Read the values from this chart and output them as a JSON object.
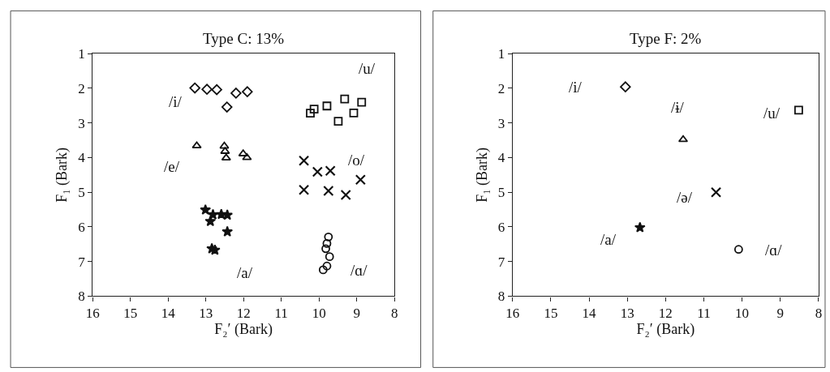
{
  "chart_data": [
    {
      "type": "scatter",
      "title": "Type C: 13%",
      "xlabel": "F₂′ (Bark)",
      "ylabel": "F₁ (Bark)",
      "xlim": [
        16,
        8
      ],
      "xticks": [
        16,
        15,
        14,
        13,
        12,
        11,
        10,
        9,
        8
      ],
      "ylim": [
        8,
        1
      ],
      "yticks": [
        1,
        2,
        3,
        4,
        5,
        6,
        7,
        8
      ],
      "series": [
        {
          "name": "/i/",
          "color": "#111111",
          "marker": "diamond",
          "x": [
            13.29,
            12.97,
            12.71,
            12.44,
            12.2,
            11.9
          ],
          "values": [
            1.99,
            2.03,
            2.04,
            2.54,
            2.14,
            2.1
          ]
        },
        {
          "name": "/u/",
          "color": "#111111",
          "marker": "square",
          "x": [
            10.23,
            10.13,
            9.79,
            9.49,
            9.32,
            9.08,
            8.87
          ],
          "values": [
            2.72,
            2.6,
            2.51,
            2.95,
            2.31,
            2.71,
            2.4
          ]
        },
        {
          "name": "/e/",
          "color": "#111111",
          "marker": "triangle",
          "x": [
            13.24,
            12.51,
            12.49,
            12.46,
            12.01,
            11.91
          ],
          "values": [
            3.66,
            3.67,
            3.82,
            4.01,
            3.89,
            4.0
          ]
        },
        {
          "name": "/a/",
          "color": "#111111",
          "marker": "star",
          "x": [
            13.01,
            12.81,
            12.88,
            12.59,
            12.43,
            12.43,
            12.76,
            12.84
          ],
          "values": [
            5.51,
            5.65,
            5.84,
            5.64,
            5.66,
            6.14,
            6.67,
            6.63
          ]
        },
        {
          "name": "/o/",
          "color": "#111111",
          "marker": "cross",
          "x": [
            10.4,
            10.4,
            10.04,
            9.7,
            9.75,
            9.29,
            8.9
          ],
          "values": [
            4.09,
            4.93,
            4.41,
            4.38,
            4.96,
            5.08,
            4.64
          ]
        },
        {
          "name": "/ɑ/",
          "color": "#111111",
          "marker": "circle",
          "x": [
            9.75,
            9.79,
            9.82,
            9.72,
            9.79,
            9.89
          ],
          "values": [
            6.29,
            6.48,
            6.63,
            6.86,
            7.13,
            7.24
          ]
        }
      ]
    },
    {
      "type": "scatter",
      "title": "Type F: 2%",
      "xlabel": "F₂′ (Bark)",
      "ylabel": "F₁ (Bark)",
      "xlim": [
        16,
        8
      ],
      "xticks": [
        16,
        15,
        14,
        13,
        12,
        11,
        10,
        9,
        8
      ],
      "ylim": [
        8,
        1
      ],
      "yticks": [
        1,
        2,
        3,
        4,
        5,
        6,
        7,
        8
      ],
      "series": [
        {
          "name": "/i/",
          "color": "#111111",
          "marker": "diamond",
          "x": [
            13.05
          ],
          "values": [
            1.96
          ]
        },
        {
          "name": "/ɨ/",
          "color": "#111111",
          "marker": "triangle",
          "x": [
            11.54
          ],
          "values": [
            3.48
          ]
        },
        {
          "name": "/u/",
          "color": "#111111",
          "marker": "square",
          "x": [
            8.52
          ],
          "values": [
            2.63
          ]
        },
        {
          "name": "/ə/",
          "color": "#111111",
          "marker": "cross",
          "x": [
            10.68
          ],
          "values": [
            5.0
          ]
        },
        {
          "name": "/a/",
          "color": "#111111",
          "marker": "star",
          "x": [
            12.67
          ],
          "values": [
            6.02
          ]
        },
        {
          "name": "/ɑ/",
          "color": "#111111",
          "marker": "circle",
          "x": [
            10.09
          ],
          "values": [
            6.65
          ]
        }
      ]
    }
  ]
}
